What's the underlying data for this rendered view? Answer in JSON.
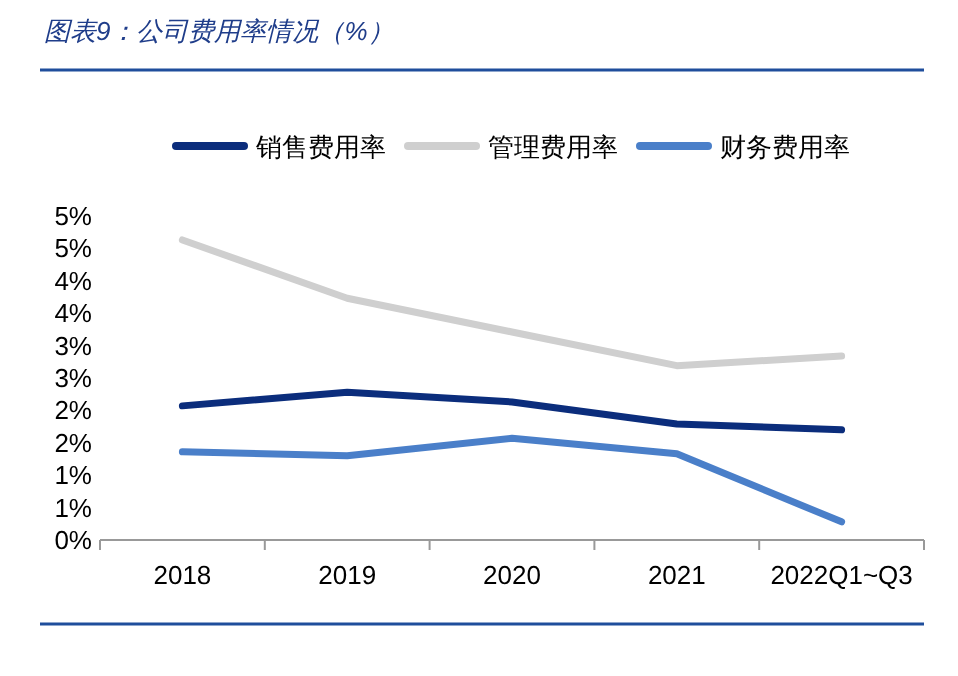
{
  "chart_data": {
    "type": "line",
    "title": "图表9：公司费用率情况（%）",
    "categories": [
      "2018",
      "2019",
      "2020",
      "2021",
      "2022Q1~Q3"
    ],
    "series": [
      {
        "name": "销售费用率",
        "color": "#0b2d7c",
        "values": [
          2.07,
          2.28,
          2.13,
          1.79,
          1.7
        ]
      },
      {
        "name": "管理费用率",
        "color": "#cfcfcf",
        "values": [
          4.63,
          3.73,
          3.21,
          2.69,
          2.84
        ]
      },
      {
        "name": "财务费用率",
        "color": "#4a7fc9",
        "values": [
          1.36,
          1.3,
          1.57,
          1.33,
          0.28
        ]
      }
    ],
    "ylim": [
      0,
      5
    ],
    "yticks": [
      {
        "value": 0,
        "label": "0%"
      },
      {
        "value": 0.5,
        "label": "1%"
      },
      {
        "value": 1,
        "label": "1%"
      },
      {
        "value": 1.5,
        "label": "2%"
      },
      {
        "value": 2,
        "label": "2%"
      },
      {
        "value": 2.5,
        "label": "3%"
      },
      {
        "value": 3,
        "label": "3%"
      },
      {
        "value": 3.5,
        "label": "4%"
      },
      {
        "value": 4,
        "label": "4%"
      },
      {
        "value": 4.5,
        "label": "5%"
      },
      {
        "value": 5,
        "label": "5%"
      }
    ],
    "legend": "top",
    "grid": false,
    "marker": "none",
    "line_style": "solid"
  }
}
